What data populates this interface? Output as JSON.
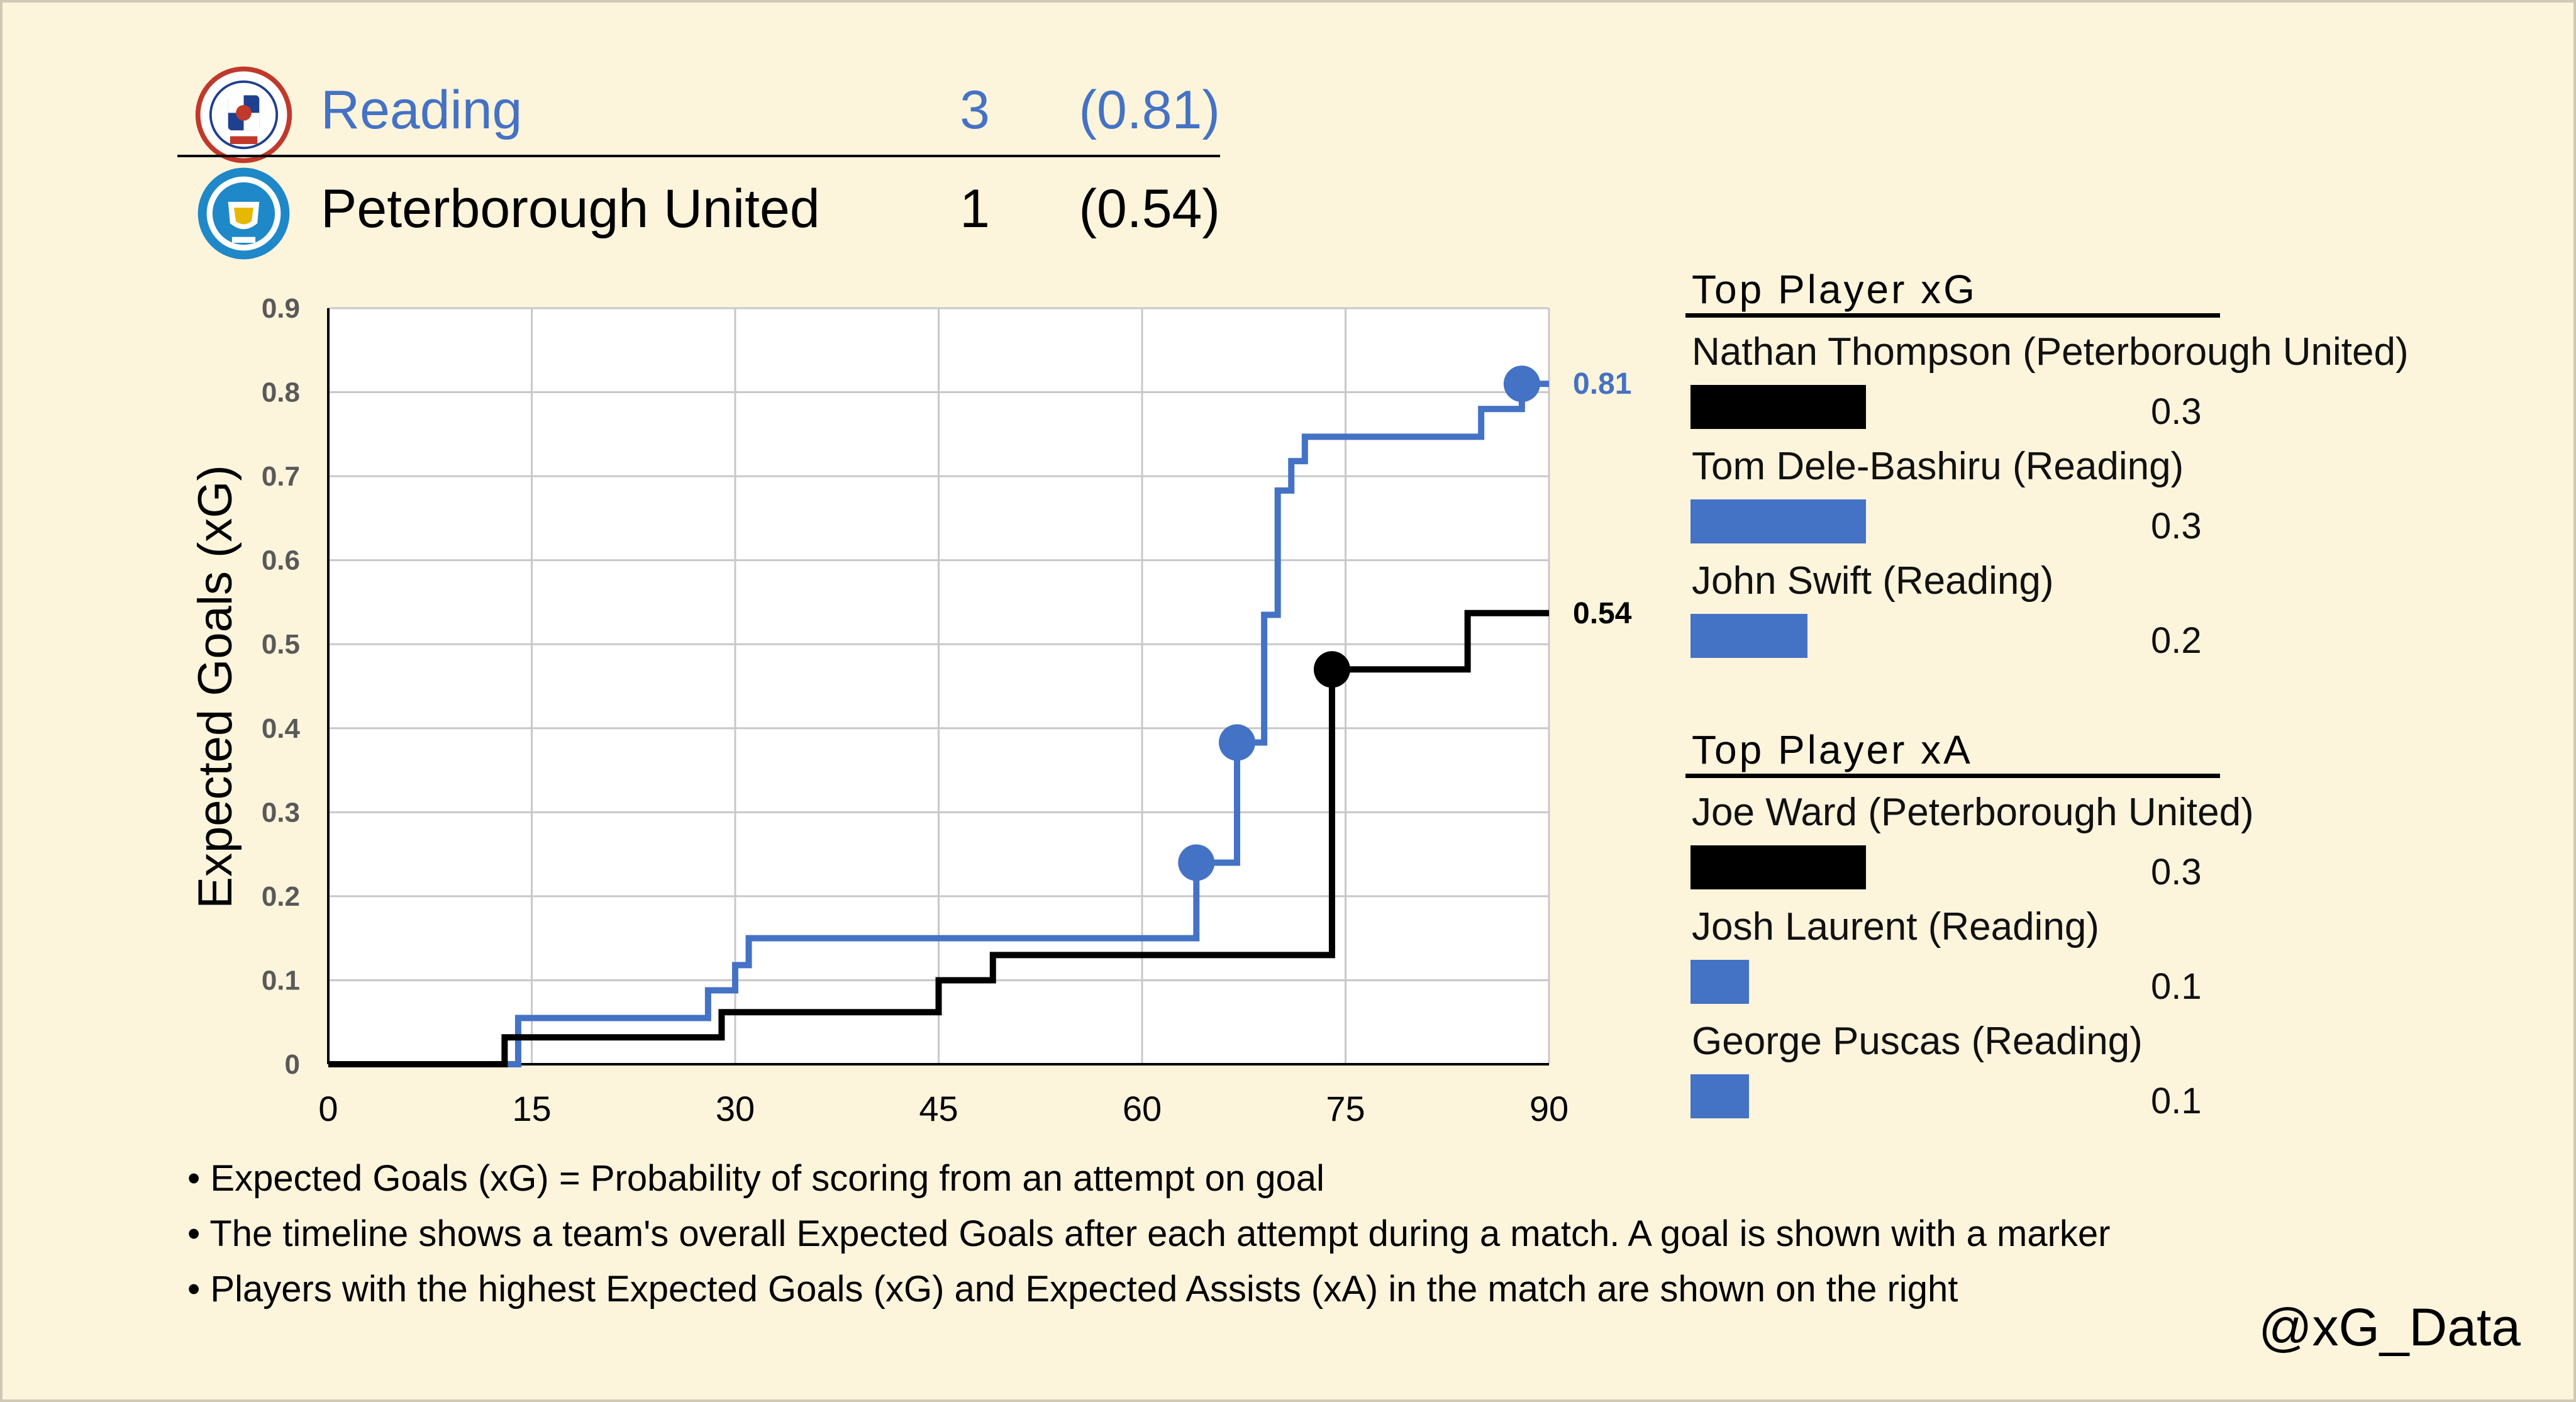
{
  "scoreboard": {
    "home": {
      "name": "Reading",
      "goals": "3",
      "xg": "(0.81)",
      "color": "#4472c4",
      "crest": "reading-crest-icon"
    },
    "away": {
      "name": "Peterborough United",
      "goals": "1",
      "xg": "(0.54)",
      "color": "#000000",
      "crest": "peterborough-crest-icon"
    }
  },
  "chart_data": {
    "type": "line",
    "step": true,
    "ylabel": "Expected Goals (xG)",
    "xlabel": "",
    "xlim": [
      0,
      90
    ],
    "ylim": [
      0,
      0.9
    ],
    "xticks": [
      0,
      15,
      30,
      45,
      60,
      75,
      90
    ],
    "yticks": [
      0,
      0.1,
      0.2,
      0.3,
      0.4,
      0.5,
      0.6,
      0.7,
      0.8,
      0.9
    ],
    "grid": true,
    "series": [
      {
        "name": "Reading",
        "color": "#4472c4",
        "end_label": "0.81",
        "points": [
          [
            0,
            0
          ],
          [
            14,
            0
          ],
          [
            14,
            0.055
          ],
          [
            28,
            0.055
          ],
          [
            28,
            0.088
          ],
          [
            30,
            0.088
          ],
          [
            30,
            0.118
          ],
          [
            31,
            0.118
          ],
          [
            31,
            0.15
          ],
          [
            64,
            0.15
          ],
          [
            64,
            0.24
          ],
          [
            67,
            0.24
          ],
          [
            67,
            0.383
          ],
          [
            69,
            0.383
          ],
          [
            69,
            0.535
          ],
          [
            70,
            0.535
          ],
          [
            70,
            0.683
          ],
          [
            71,
            0.683
          ],
          [
            71,
            0.718
          ],
          [
            72,
            0.718
          ],
          [
            72,
            0.747
          ],
          [
            85,
            0.747
          ],
          [
            85,
            0.78
          ],
          [
            88,
            0.78
          ],
          [
            88,
            0.81
          ],
          [
            90,
            0.81
          ]
        ],
        "goals": [
          [
            64,
            0.24
          ],
          [
            67,
            0.383
          ],
          [
            88,
            0.81
          ]
        ]
      },
      {
        "name": "Peterborough United",
        "color": "#000000",
        "end_label": "0.54",
        "points": [
          [
            0,
            0
          ],
          [
            13,
            0
          ],
          [
            13,
            0.032
          ],
          [
            29,
            0.032
          ],
          [
            29,
            0.062
          ],
          [
            45,
            0.062
          ],
          [
            45,
            0.1
          ],
          [
            49,
            0.1
          ],
          [
            49,
            0.13
          ],
          [
            74,
            0.13
          ],
          [
            74,
            0.47
          ],
          [
            84,
            0.47
          ],
          [
            84,
            0.537
          ],
          [
            90,
            0.537
          ]
        ],
        "goals": [
          [
            74,
            0.47
          ]
        ]
      }
    ]
  },
  "top_xg": {
    "title": "Top Player xG",
    "players": [
      {
        "name": "Nathan Thompson (Peterborough United)",
        "value": "0.3",
        "amount": 0.3,
        "color": "#000000"
      },
      {
        "name": "Tom Dele-Bashiru (Reading)",
        "value": "0.3",
        "amount": 0.3,
        "color": "#4472c4"
      },
      {
        "name": "John Swift (Reading)",
        "value": "0.2",
        "amount": 0.2,
        "color": "#4472c4"
      }
    ]
  },
  "top_xa": {
    "title": "Top Player xA",
    "players": [
      {
        "name": "Joe Ward (Peterborough United)",
        "value": "0.3",
        "amount": 0.3,
        "color": "#000000"
      },
      {
        "name": "Josh Laurent (Reading)",
        "value": "0.1",
        "amount": 0.1,
        "color": "#4472c4"
      },
      {
        "name": "George Puscas (Reading)",
        "value": "0.1",
        "amount": 0.1,
        "color": "#4472c4"
      }
    ]
  },
  "notes": [
    "• Expected Goals (xG) = Probability of scoring from an attempt on goal",
    "• The timeline shows a team's overall Expected Goals after each attempt during a match. A goal is shown with a marker",
    "• Players with the highest Expected Goals (xG) and Expected Assists (xA) in the match are shown on the right"
  ],
  "credit": "@xG_Data"
}
